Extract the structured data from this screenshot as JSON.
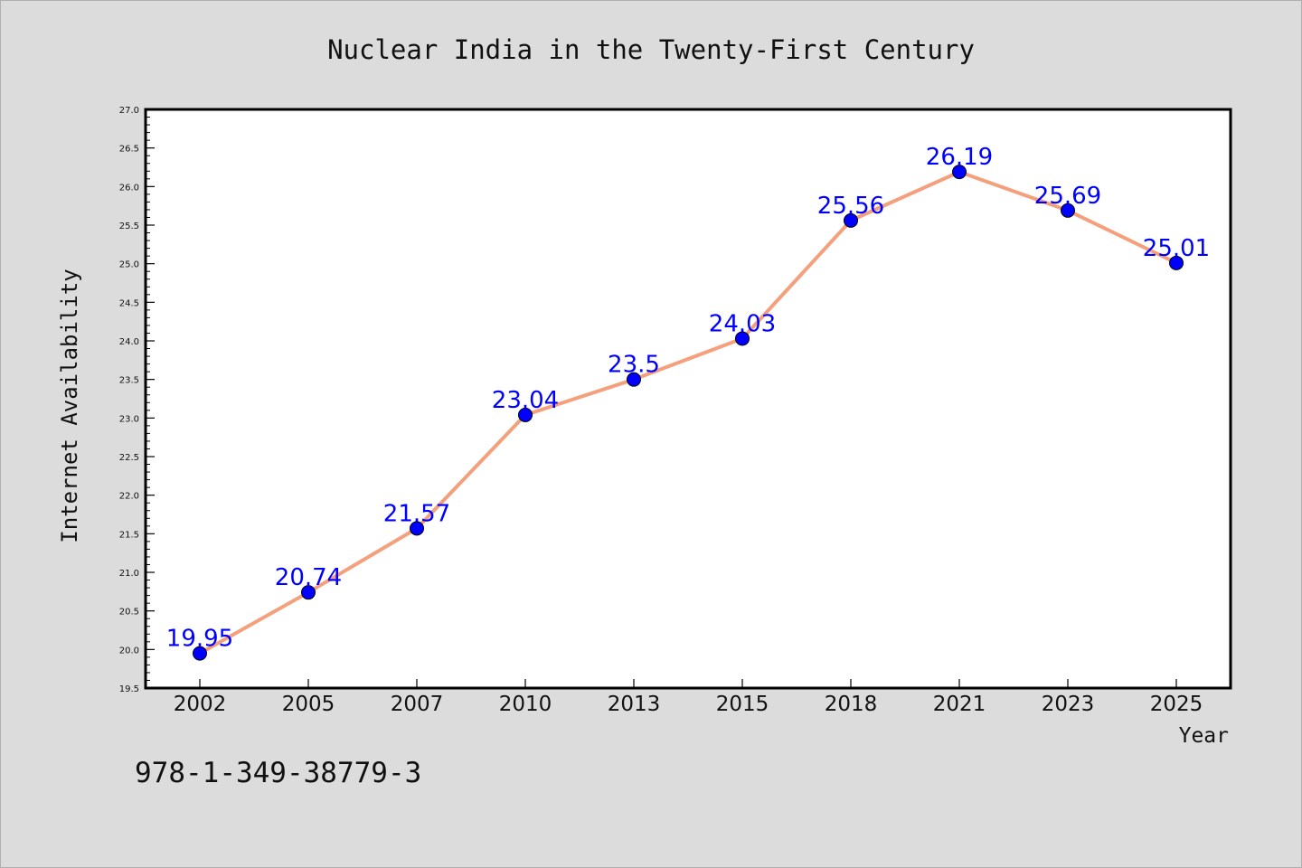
{
  "chart_data": {
    "type": "line",
    "title": "Nuclear India in the Twenty-First Century",
    "xlabel": "Year",
    "ylabel": "Internet Availability",
    "categories": [
      "2002",
      "2005",
      "2007",
      "2010",
      "2013",
      "2015",
      "2018",
      "2021",
      "2023",
      "2025"
    ],
    "series": [
      {
        "values": [
          19.95,
          20.74,
          21.57,
          23.04,
          23.5,
          24.03,
          25.56,
          26.19,
          25.69,
          25.01
        ],
        "labels": [
          "19.95",
          "20.74",
          "21.57",
          "23.04",
          "23.5",
          "24.03",
          "25.56",
          "26.19",
          "25.69",
          "25.01"
        ]
      }
    ],
    "ylim": [
      19.5,
      27.0
    ],
    "yticks": [
      "19.5",
      "20.0",
      "20.5",
      "21.0",
      "21.5",
      "22.0",
      "22.5",
      "23.0",
      "23.5",
      "24.0",
      "24.5",
      "25.0",
      "25.5",
      "26.0",
      "26.5",
      "27.0"
    ],
    "grid": false,
    "line_color": "#f4a07c",
    "marker_color": "#0000ff",
    "label_color": "#0000ff"
  },
  "footnote": "978-1-349-38779-3"
}
